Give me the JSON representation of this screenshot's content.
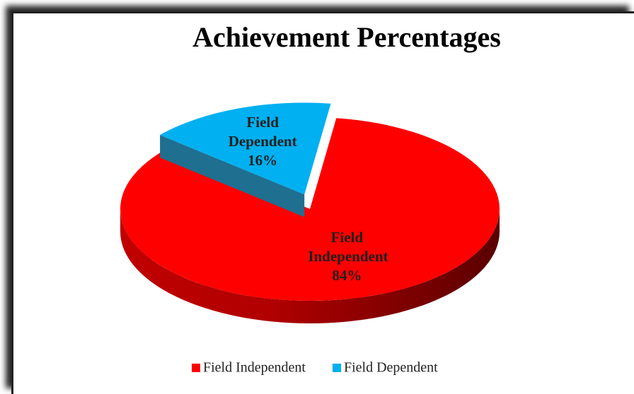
{
  "chart_data": {
    "type": "pie",
    "title": "Achievement Percentages",
    "categories": [
      "Field Independent",
      "Field Dependent"
    ],
    "values": [
      84,
      16
    ],
    "value_labels": [
      "84%",
      "16%"
    ],
    "colors": [
      "#ff0000",
      "#00b0f0"
    ],
    "legend": "bottom"
  }
}
